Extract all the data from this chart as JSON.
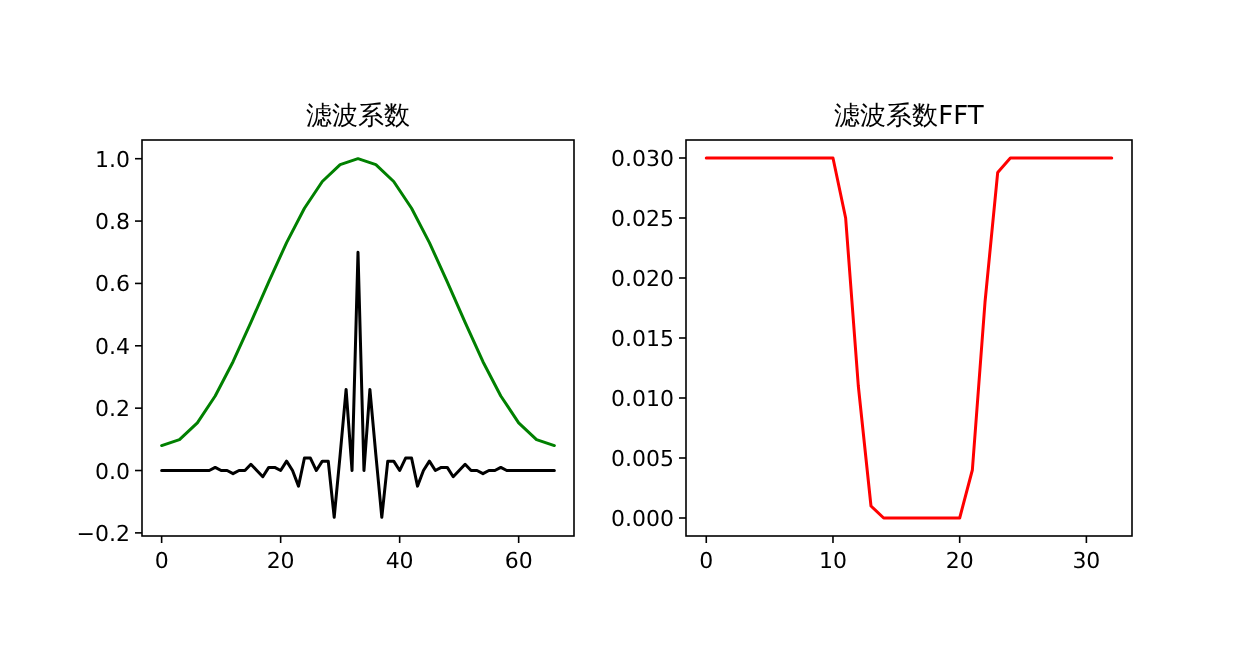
{
  "chart_data": [
    {
      "type": "line",
      "title": "滤波系数",
      "xlim": [
        -3.3,
        69.3
      ],
      "ylim": [
        -0.21,
        1.06
      ],
      "xticks": [
        0,
        20,
        40,
        60
      ],
      "yticks": [
        {
          "value": -0.2,
          "label": "−0.2"
        },
        {
          "value": 0,
          "label": "0.0"
        },
        {
          "value": 0.2,
          "label": "0.2"
        },
        {
          "value": 0.4,
          "label": "0.4"
        },
        {
          "value": 0.6,
          "label": "0.6"
        },
        {
          "value": 0.8,
          "label": "0.8"
        },
        {
          "value": 1,
          "label": "1.0"
        }
      ],
      "series": [
        {
          "color": "#008000",
          "x": [
            0,
            3,
            6,
            9,
            12,
            15,
            18,
            21,
            24,
            27,
            30,
            33,
            36,
            39,
            42,
            45,
            48,
            51,
            54,
            57,
            60,
            63,
            66
          ],
          "values": [
            0.08,
            0.099,
            0.153,
            0.239,
            0.349,
            0.475,
            0.605,
            0.731,
            0.841,
            0.927,
            0.981,
            1.0,
            0.981,
            0.927,
            0.841,
            0.731,
            0.605,
            0.475,
            0.349,
            0.239,
            0.153,
            0.099,
            0.08
          ]
        },
        {
          "color": "#000000",
          "x": [
            0,
            1,
            2,
            3,
            4,
            5,
            6,
            7,
            8,
            9,
            10,
            11,
            12,
            13,
            14,
            15,
            16,
            17,
            18,
            19,
            20,
            21,
            22,
            23,
            24,
            25,
            26,
            27,
            28,
            29,
            30,
            31,
            32,
            33,
            34,
            35,
            36,
            37,
            38,
            39,
            40,
            41,
            42,
            43,
            44,
            45,
            46,
            47,
            48,
            49,
            50,
            51,
            52,
            53,
            54,
            55,
            56,
            57,
            58,
            59,
            60,
            61,
            62,
            63,
            64,
            65,
            66
          ],
          "values": [
            0,
            0,
            0,
            0,
            0,
            0,
            0,
            0,
            0,
            0.01,
            0,
            0,
            -0.01,
            0,
            0,
            0.02,
            0,
            -0.02,
            0.01,
            0.01,
            0,
            0.03,
            0,
            -0.05,
            0.04,
            0.04,
            0,
            0.03,
            0.03,
            -0.15,
            0.05,
            0.26,
            0,
            0.7,
            0,
            0.26,
            0.05,
            -0.15,
            0.03,
            0.03,
            0,
            0.04,
            0.04,
            -0.05,
            0,
            0.03,
            0,
            0.01,
            0.01,
            -0.02,
            0,
            0.02,
            0,
            0,
            -0.01,
            0,
            0,
            0.01,
            0,
            0,
            0,
            0,
            0,
            0,
            0,
            0,
            0
          ]
        }
      ]
    },
    {
      "type": "line",
      "title": "滤波系数FFT",
      "xlim": [
        -1.6,
        33.6
      ],
      "ylim": [
        -0.0015,
        0.0315
      ],
      "xticks": [
        0,
        10,
        20,
        30
      ],
      "yticks": [
        {
          "value": 0,
          "label": "0.000"
        },
        {
          "value": 0.005,
          "label": "0.005"
        },
        {
          "value": 0.01,
          "label": "0.010"
        },
        {
          "value": 0.015,
          "label": "0.015"
        },
        {
          "value": 0.02,
          "label": "0.020"
        },
        {
          "value": 0.025,
          "label": "0.025"
        },
        {
          "value": 0.03,
          "label": "0.030"
        }
      ],
      "series": [
        {
          "color": "#ff0000",
          "x": [
            0,
            1,
            2,
            3,
            4,
            5,
            6,
            7,
            8,
            9,
            10,
            11,
            12,
            13,
            14,
            15,
            16,
            17,
            18,
            19,
            20,
            21,
            22,
            23,
            24,
            25,
            26,
            27,
            28,
            29,
            30,
            31,
            32
          ],
          "values": [
            0.03,
            0.03,
            0.03,
            0.03,
            0.03,
            0.03,
            0.03,
            0.03,
            0.03,
            0.03,
            0.03,
            0.025,
            0.011,
            0.001,
            0,
            0,
            0,
            0,
            0,
            0,
            0,
            0.004,
            0.018,
            0.0288,
            0.03,
            0.03,
            0.03,
            0.03,
            0.03,
            0.03,
            0.03,
            0.03,
            0.03
          ]
        }
      ]
    }
  ]
}
